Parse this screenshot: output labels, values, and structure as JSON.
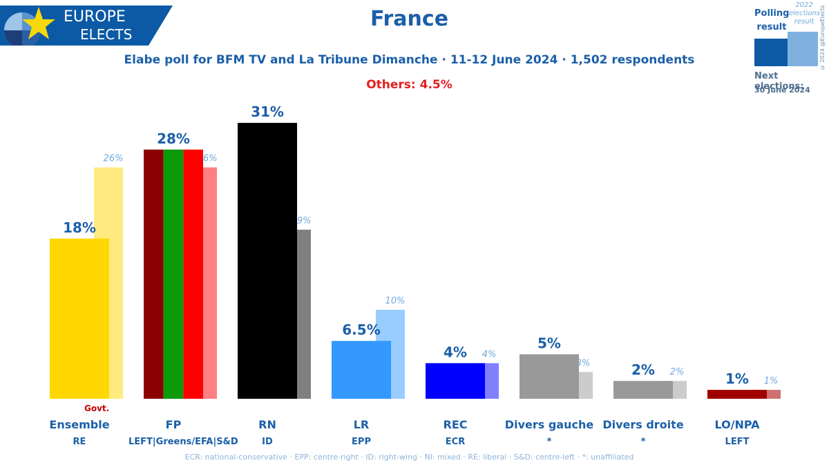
{
  "header": {
    "logo_line1": "EUROPE",
    "logo_line2": "ELECTS",
    "title": "France",
    "subtitle": "Elabe poll for BFM TV and La Tribune Dimanche · 11-12 June 2024 · 1,502 respondents",
    "others": "Others: 4.5%"
  },
  "legend": {
    "polling_label": "Polling result",
    "prev_label": "2022 elections result",
    "next_label": "Next elections:",
    "next_date": "30 June 2024",
    "copyright": "© 2024 @EuropeElects"
  },
  "govt_label": "Govt.",
  "footnote": "ECR: national-conservative · EPP: centre-right · ID: right-wing · NI: mixed · RE: liberal · S&D: centre-left · *: unaffiliated",
  "colors": {
    "brand_blue": "#1b5fa8",
    "logo_bg": "#0c5aa6",
    "logo_star": "#f5d90a",
    "others_red": "#e41e1e"
  },
  "chart_data": {
    "type": "bar",
    "title": "France",
    "categories": [
      "Ensemble",
      "FP",
      "RN",
      "LR",
      "REC",
      "Divers gauche",
      "Divers droite",
      "LO/NPA"
    ],
    "groups": [
      "RE",
      "LEFT|Greens/EFA|S&D",
      "ID",
      "EPP",
      "ECR",
      "*",
      "*",
      "LEFT"
    ],
    "series": [
      {
        "name": "Polling result",
        "values": [
          18,
          28,
          31,
          6.5,
          4,
          5,
          2,
          1
        ],
        "labels": [
          "18%",
          "28%",
          "31%",
          "6.5%",
          "4%",
          "5%",
          "2%",
          "1%"
        ]
      },
      {
        "name": "2022 elections result",
        "values": [
          26,
          26,
          19,
          10,
          4,
          3,
          2,
          1
        ],
        "labels": [
          "26%",
          "26%",
          "19%",
          "10%",
          "4%",
          "3%",
          "2%",
          "1%"
        ]
      }
    ],
    "poll_colors": [
      [
        "#ffd700"
      ],
      [
        "#8b0000",
        "#0a9a0a",
        "#ff0000"
      ],
      [
        "#000000"
      ],
      [
        "#3399ff"
      ],
      [
        "#0000ff"
      ],
      [
        "#999999"
      ],
      [
        "#999999"
      ],
      [
        "#a00000"
      ]
    ],
    "prev_colors": [
      [
        "#ffea80"
      ],
      [
        "#8bc58b",
        "#ff8080"
      ],
      [
        "#808080"
      ],
      [
        "#99ccff"
      ],
      [
        "#8080ff"
      ],
      [
        "#cccccc"
      ],
      [
        "#cccccc"
      ],
      [
        "#d07070"
      ]
    ],
    "govt_index": 0,
    "ylim": [
      0,
      32
    ],
    "grid": false,
    "legend_position": "top-right"
  }
}
